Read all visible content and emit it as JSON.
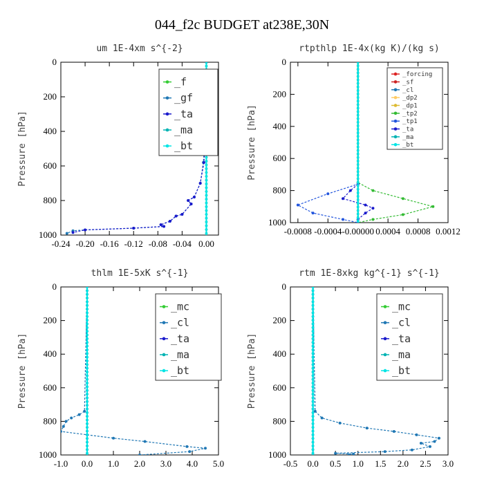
{
  "figure_title": "044_f2c  BUDGET at238E,30N",
  "colors": {
    "_f": "#33cc33",
    "_gf": "#1f77b4",
    "_ta": "#1a1acc",
    "_ma": "#00b3b3",
    "_bt": "#00e5e5",
    "_forcing": "#dd2222",
    "_sf": "#cc2222",
    "_cl": "#1f77b4",
    "_dp2": "#ffcc66",
    "_dp1": "#ddbb33",
    "_tp2": "#33bb33",
    "_tp1": "#2255dd",
    "_mc": "#33cc33"
  },
  "chart_data": [
    {
      "type": "line",
      "title": "um  1E-4xm s^{-2}",
      "ylabel": "Pressure [hPa]",
      "xlim": [
        -0.24,
        0.02
      ],
      "ylim": [
        1000,
        0
      ],
      "y_inverted": true,
      "xticks": [
        -0.24,
        -0.2,
        -0.16,
        -0.12,
        -0.08,
        -0.04,
        0.0
      ],
      "xtick_labels": [
        "-0.24",
        "-0.20",
        "-0.16",
        "-0.12",
        "-0.08",
        "-0.04",
        "0.00"
      ],
      "yticks": [
        0,
        200,
        400,
        600,
        800,
        1000
      ],
      "legend_position": "top-right",
      "series": [
        {
          "name": "_f",
          "x": [
            0,
            0
          ],
          "y": [
            0,
            1000
          ]
        },
        {
          "name": "_gf",
          "x": [
            0.0,
            0.002,
            0.001,
            -0.005,
            -0.01,
            -0.02,
            -0.03,
            -0.025,
            -0.04,
            -0.05,
            -0.06,
            -0.075,
            -0.07,
            -0.12,
            -0.2,
            -0.22,
            -0.23
          ],
          "y": [
            0,
            200,
            300,
            580,
            700,
            780,
            800,
            820,
            880,
            890,
            920,
            940,
            950,
            960,
            970,
            975,
            990
          ]
        },
        {
          "name": "_ta",
          "x": [
            0.0,
            0.003,
            0.001,
            -0.004,
            -0.01,
            -0.02,
            -0.03,
            -0.025,
            -0.04,
            -0.05,
            -0.06,
            -0.075,
            -0.07,
            -0.12,
            -0.2,
            -0.22
          ],
          "y": [
            0,
            200,
            300,
            580,
            700,
            780,
            800,
            820,
            880,
            890,
            920,
            940,
            950,
            960,
            970,
            985
          ]
        },
        {
          "name": "_ma",
          "x": [
            0,
            0
          ],
          "y": [
            0,
            1000
          ]
        },
        {
          "name": "_bt",
          "x": [
            0,
            0
          ],
          "y": [
            0,
            1000
          ]
        }
      ]
    },
    {
      "type": "line",
      "title": "rtpthlp  1E-4x(kg K)/(kg s)",
      "ylabel": "Pressure [hPa]",
      "xlim": [
        -0.0009,
        0.0012
      ],
      "ylim": [
        1000,
        0
      ],
      "y_inverted": true,
      "xticks": [
        -0.0008,
        -0.0004,
        0.0,
        0.0004,
        0.0008,
        0.0012
      ],
      "xtick_labels": [
        "-0.0008",
        "-0.0004",
        "-0.00000",
        "0.0004",
        "0.0008",
        "0.0012"
      ],
      "yticks": [
        0,
        200,
        400,
        600,
        800,
        1000
      ],
      "legend_position": "top-right",
      "series": [
        {
          "name": "_forcing",
          "x": [
            0,
            0
          ],
          "y": [
            0,
            1000
          ]
        },
        {
          "name": "_sf",
          "x": [
            0,
            0
          ],
          "y": [
            0,
            1000
          ]
        },
        {
          "name": "_cl",
          "x": [
            0,
            0
          ],
          "y": [
            0,
            1000
          ]
        },
        {
          "name": "_dp2",
          "x": [
            0,
            0
          ],
          "y": [
            0,
            1000
          ]
        },
        {
          "name": "_dp1",
          "x": [
            0,
            0
          ],
          "y": [
            0,
            1000
          ]
        },
        {
          "name": "_tp2",
          "x": [
            0,
            0,
            0.0002,
            0.0006,
            0.001,
            0.0006,
            0.0002,
            0
          ],
          "y": [
            0,
            750,
            800,
            850,
            900,
            950,
            980,
            1000
          ]
        },
        {
          "name": "_tp1",
          "x": [
            0,
            0,
            -0.0004,
            -0.0008,
            -0.0006,
            -0.0002,
            0
          ],
          "y": [
            0,
            760,
            820,
            890,
            940,
            980,
            1000
          ]
        },
        {
          "name": "_ta",
          "x": [
            0,
            -0.0001,
            -0.0002,
            0.0001,
            0.0002,
            0.0001,
            0
          ],
          "y": [
            760,
            800,
            850,
            890,
            910,
            940,
            980
          ]
        },
        {
          "name": "_ma",
          "x": [
            0,
            0
          ],
          "y": [
            0,
            1000
          ]
        },
        {
          "name": "_bt",
          "x": [
            0,
            0
          ],
          "y": [
            0,
            1000
          ]
        }
      ]
    },
    {
      "type": "line",
      "title": "thlm  1E-5xK s^{-1}",
      "ylabel": "Pressure [hPa]",
      "xlim": [
        -1.0,
        5.0
      ],
      "ylim": [
        1000,
        0
      ],
      "y_inverted": true,
      "xticks": [
        -1,
        0,
        1,
        2,
        3,
        4,
        5
      ],
      "xtick_labels": [
        "-1.0",
        "0.0",
        "1.0",
        "2.0",
        "3.0",
        "4.0",
        "5.0"
      ],
      "yticks": [
        0,
        200,
        400,
        600,
        800,
        1000
      ],
      "legend_position": "top-right",
      "series": [
        {
          "name": "_mc",
          "x": [
            0,
            0
          ],
          "y": [
            0,
            1000
          ]
        },
        {
          "name": "_cl",
          "x": [
            0,
            -0.1,
            -0.3,
            -0.6,
            -0.8,
            -0.9,
            -1.0,
            0.0,
            1.0,
            2.2,
            3.8,
            4.5,
            3.9,
            2.0
          ],
          "y": [
            0,
            740,
            760,
            780,
            800,
            830,
            860,
            880,
            900,
            920,
            950,
            960,
            980,
            1000
          ]
        },
        {
          "name": "_ta",
          "x": [
            0,
            0
          ],
          "y": [
            0,
            1000
          ]
        },
        {
          "name": "_ma",
          "x": [
            0,
            0
          ],
          "y": [
            0,
            1000
          ]
        },
        {
          "name": "_bt",
          "x": [
            0,
            0
          ],
          "y": [
            0,
            1000
          ]
        }
      ]
    },
    {
      "type": "line",
      "title": "rtm  1E-8xkg kg^{-1} s^{-1}",
      "ylabel": "Pressure [hPa]",
      "xlim": [
        -0.5,
        3.0
      ],
      "ylim": [
        1000,
        0
      ],
      "y_inverted": true,
      "xticks": [
        -0.5,
        0.0,
        0.5,
        1.0,
        1.5,
        2.0,
        2.5,
        3.0
      ],
      "xtick_labels": [
        "-0.5",
        "0.0",
        "0.5",
        "1.0",
        "1.5",
        "2.0",
        "2.5",
        "3.0"
      ],
      "yticks": [
        0,
        200,
        400,
        600,
        800,
        1000
      ],
      "legend_position": "top-right",
      "series": [
        {
          "name": "_mc",
          "x": [
            0,
            0
          ],
          "y": [
            0,
            1000
          ]
        },
        {
          "name": "_cl",
          "x": [
            0,
            0.05,
            0.2,
            0.6,
            1.2,
            1.8,
            2.3,
            2.8,
            2.7,
            2.4,
            2.6,
            2.2,
            1.6,
            0.5,
            0.9,
            0.8
          ],
          "y": [
            0,
            740,
            780,
            810,
            840,
            860,
            880,
            900,
            920,
            930,
            950,
            970,
            980,
            990,
            995,
            1000
          ]
        },
        {
          "name": "_ta",
          "x": [
            0,
            0
          ],
          "y": [
            0,
            1000
          ]
        },
        {
          "name": "_ma",
          "x": [
            0,
            0
          ],
          "y": [
            0,
            1000
          ]
        },
        {
          "name": "_bt",
          "x": [
            0,
            0
          ],
          "y": [
            0,
            1000
          ]
        }
      ]
    }
  ]
}
